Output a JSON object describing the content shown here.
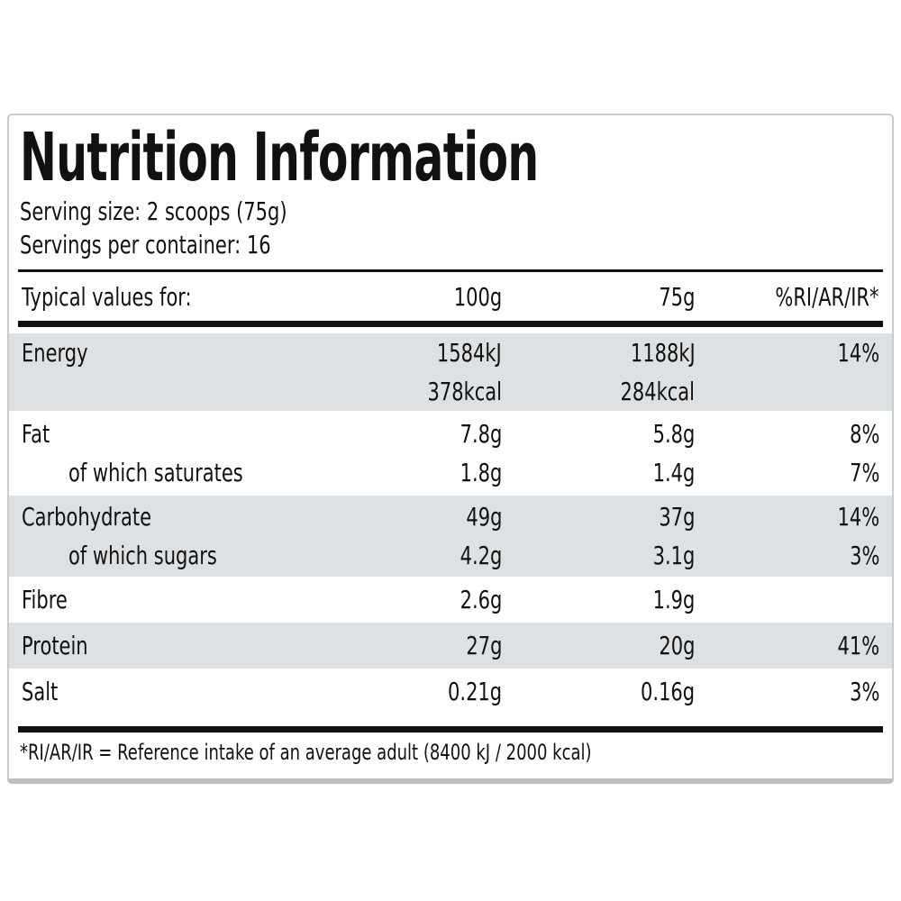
{
  "title": "Nutrition Information",
  "serving": {
    "size": "Serving size: 2 scoops (75g)",
    "per_container": "Servings per container: 16"
  },
  "table": {
    "header": {
      "label": "Typical values for:",
      "col_100g": "100g",
      "col_75g": "75g",
      "col_ri": "%RI/AR/IR*"
    },
    "groups": [
      {
        "shaded": true,
        "lines": [
          {
            "label": "Energy",
            "v100": "1584kJ",
            "v75": "1188kJ",
            "ri": "14%"
          },
          {
            "label": "",
            "v100": "378kcal",
            "v75": "284kcal",
            "ri": ""
          }
        ]
      },
      {
        "shaded": false,
        "lines": [
          {
            "label": "Fat",
            "v100": "7.8g",
            "v75": "5.8g",
            "ri": "8%"
          },
          {
            "label": "of which saturates",
            "v100": "1.8g",
            "v75": "1.4g",
            "ri": "7%"
          }
        ]
      },
      {
        "shaded": true,
        "lines": [
          {
            "label": "Carbohydrate",
            "v100": "49g",
            "v75": "37g",
            "ri": "14%"
          },
          {
            "label": "of which sugars",
            "v100": "4.2g",
            "v75": "3.1g",
            "ri": "3%"
          }
        ]
      },
      {
        "shaded": false,
        "lines": [
          {
            "label": "Fibre",
            "v100": "2.6g",
            "v75": "1.9g",
            "ri": ""
          }
        ]
      },
      {
        "shaded": true,
        "lines": [
          {
            "label": "Protein",
            "v100": "27g",
            "v75": "20g",
            "ri": "41%"
          }
        ]
      },
      {
        "shaded": false,
        "lines": [
          {
            "label": "Salt",
            "v100": "0.21g",
            "v75": "0.16g",
            "ri": "3%"
          }
        ]
      }
    ]
  },
  "footnote": "*RI/AR/IR = Reference intake of an average adult (8400 kJ / 2000 kcal)",
  "colors": {
    "shaded_row": "#dee1e3",
    "rule": "#111111",
    "card_border": "#c9cccd",
    "text": "#111111",
    "background": "#ffffff"
  }
}
